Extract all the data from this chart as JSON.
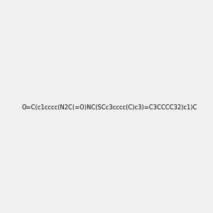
{
  "smiles": "O=C(c1cccc(N2C(=O)NC(SCc3cccc(C)c3)=C3CCCC32)c1)C",
  "image_size": 300,
  "background_color": "#f0f0f0",
  "title": ""
}
